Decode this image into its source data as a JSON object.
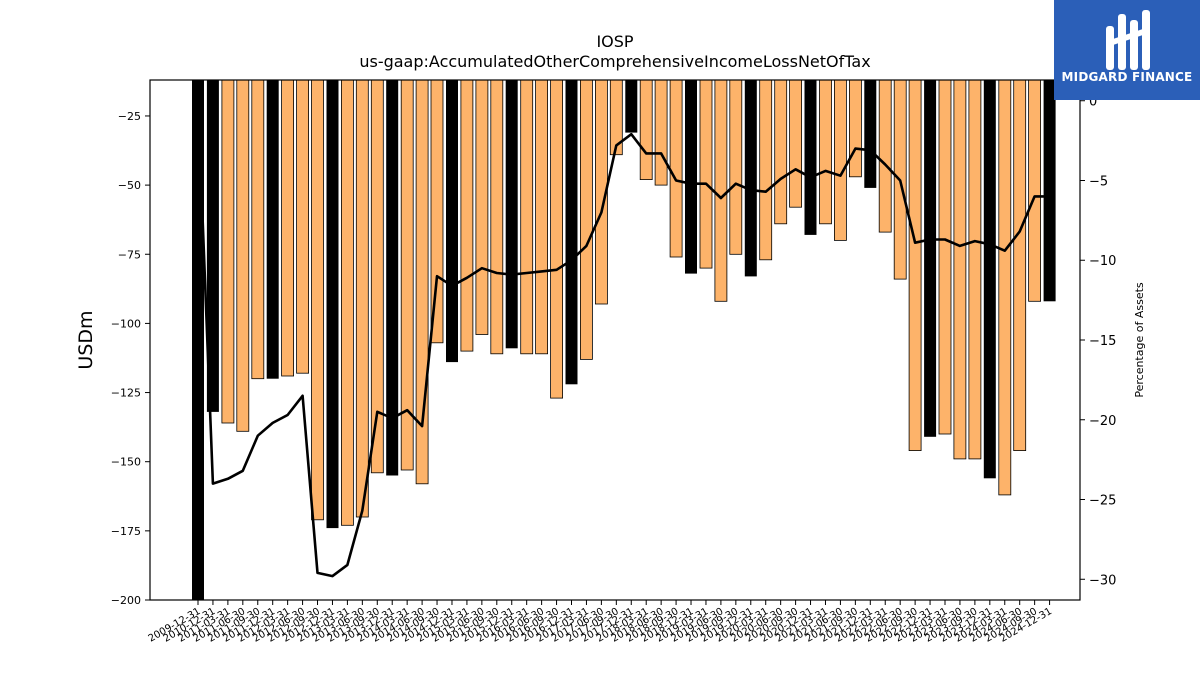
{
  "title": "IOSP",
  "subtitle": "us-gaap:AccumulatedOtherComprehensiveIncomeLossNetOfTax",
  "logo": {
    "text": "MIDGARD FINANCE",
    "background": "#2b5fb8"
  },
  "colors": {
    "year_end_bar": "#000000",
    "quarter_bar": "#fdb36a",
    "line": "#000000"
  },
  "chart_data": {
    "type": "bar",
    "ylabel": "USDm",
    "y2label": "Percentage of Assets",
    "ylim": [
      -200,
      -12
    ],
    "y2lim": [
      -31.3,
      1.3
    ],
    "yticks": [
      -25,
      -50,
      -75,
      -100,
      -125,
      -150,
      -175,
      -200
    ],
    "y2ticks": [
      0,
      -5,
      -10,
      -15,
      -20,
      -25,
      -30
    ],
    "categories": [
      "2009-12-31",
      "2010-12-31",
      "2011-03-31",
      "2011-06-30",
      "2011-09-30",
      "2011-12-31",
      "2012-03-31",
      "2012-06-30",
      "2012-09-30",
      "2012-12-31",
      "2013-03-31",
      "2013-06-30",
      "2013-09-30",
      "2013-12-31",
      "2014-03-31",
      "2014-06-30",
      "2014-09-30",
      "2014-12-31",
      "2015-03-31",
      "2015-06-30",
      "2015-09-30",
      "2015-12-31",
      "2016-03-31",
      "2016-06-30",
      "2016-09-30",
      "2016-12-31",
      "2017-03-31",
      "2017-06-30",
      "2017-09-30",
      "2017-12-31",
      "2018-03-31",
      "2018-06-30",
      "2018-09-30",
      "2018-12-31",
      "2019-03-31",
      "2019-06-30",
      "2019-09-30",
      "2019-12-31",
      "2020-03-31",
      "2020-06-30",
      "2020-09-30",
      "2020-12-31",
      "2021-03-31",
      "2021-06-30",
      "2021-09-30",
      "2021-12-31",
      "2022-03-31",
      "2022-06-30",
      "2022-09-30",
      "2022-12-31",
      "2023-03-31",
      "2023-06-30",
      "2023-09-30",
      "2023-12-31",
      "2024-03-31",
      "2024-06-30",
      "2024-09-30",
      "2024-12-31"
    ],
    "year_end": [
      true,
      true,
      false,
      false,
      false,
      true,
      false,
      false,
      false,
      true,
      false,
      false,
      false,
      true,
      false,
      false,
      false,
      true,
      false,
      false,
      false,
      true,
      false,
      false,
      false,
      true,
      false,
      false,
      false,
      true,
      false,
      false,
      false,
      true,
      false,
      false,
      false,
      true,
      false,
      false,
      false,
      true,
      false,
      false,
      false,
      true,
      false,
      false,
      false,
      true,
      false,
      false,
      false,
      true,
      false,
      false,
      false,
      true
    ],
    "values": [
      -200,
      -132,
      -136,
      -139,
      -120,
      -120,
      -119,
      -118,
      -171,
      -174,
      -173,
      -170,
      -154,
      -155,
      -153,
      -158,
      -107,
      -114,
      -110,
      -104,
      -111,
      -109,
      -111,
      -111,
      -127,
      -122,
      -113,
      -93,
      -39,
      -31,
      -48,
      -50,
      -76,
      -82,
      -80,
      -92,
      -75,
      -83,
      -77,
      -64,
      -58,
      -68,
      -64,
      -70,
      -47,
      -51,
      -67,
      -84,
      -146,
      -141,
      -140,
      -149,
      -149,
      -156,
      -162,
      -146,
      -92,
      -92
    ],
    "pct_of_assets": [
      0.0,
      -24.0,
      -23.7,
      -23.2,
      -21.0,
      -20.2,
      -19.7,
      -18.5,
      -29.6,
      -29.8,
      -29.1,
      -25.7,
      -19.5,
      -19.9,
      -19.4,
      -20.4,
      -11.0,
      -11.6,
      -11.1,
      -10.5,
      -10.8,
      -10.9,
      -10.8,
      -10.7,
      -10.6,
      -10.0,
      -9.1,
      -7.0,
      -2.8,
      -2.1,
      -3.3,
      -3.3,
      -5.0,
      -5.2,
      -5.2,
      -6.1,
      -5.2,
      -5.6,
      -5.7,
      -4.9,
      -4.3,
      -4.8,
      -4.4,
      -4.7,
      -3.0,
      -3.1,
      -4.0,
      -5.0,
      -8.9,
      -8.7,
      -8.7,
      -9.1,
      -8.8,
      -9.0,
      -9.4,
      -8.2,
      -6.0,
      -6.0
    ]
  }
}
